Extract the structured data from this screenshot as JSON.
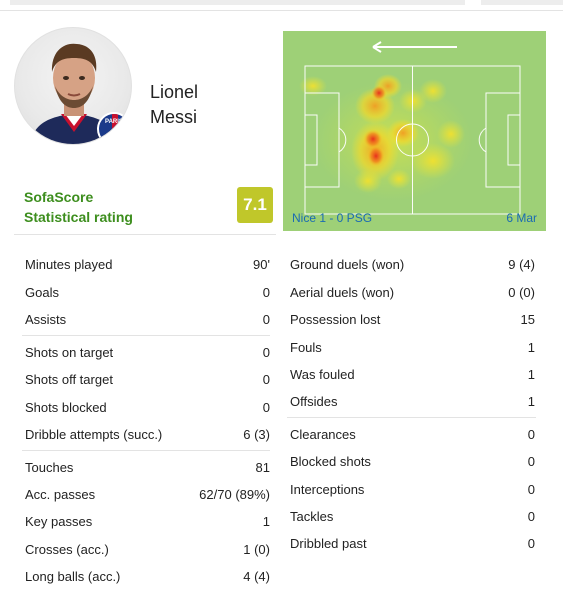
{
  "player": {
    "first_name": "Lionel",
    "last_name": "Messi",
    "club_badge_text": "PARIS"
  },
  "rating": {
    "label_line1": "SofaScore",
    "label_line2": "Statistical rating",
    "value": "7.1",
    "badge_color": "#c0c72a"
  },
  "heatmap": {
    "match": "Nice 1 - 0 PSG",
    "date": "6 Mar",
    "direction_icon": "arrow-left-icon",
    "pitch_color": "#9ed077"
  },
  "left_stats": [
    {
      "label": "Minutes played",
      "value": "90'"
    },
    {
      "label": "Goals",
      "value": "0"
    },
    {
      "label": "Assists",
      "value": "0"
    },
    {
      "label": "Shots on target",
      "value": "0"
    },
    {
      "label": "Shots off target",
      "value": "0"
    },
    {
      "label": "Shots blocked",
      "value": "0"
    },
    {
      "label": "Dribble attempts (succ.)",
      "value": "6 (3)"
    },
    {
      "label": "Touches",
      "value": "81"
    },
    {
      "label": "Acc. passes",
      "value": "62/70 (89%)"
    },
    {
      "label": "Key passes",
      "value": "1"
    },
    {
      "label": "Crosses (acc.)",
      "value": "1 (0)"
    },
    {
      "label": "Long balls (acc.)",
      "value": "4 (4)"
    }
  ],
  "right_stats": [
    {
      "label": "Ground duels (won)",
      "value": "9 (4)"
    },
    {
      "label": "Aerial duels (won)",
      "value": "0 (0)"
    },
    {
      "label": "Possession lost",
      "value": "15"
    },
    {
      "label": "Fouls",
      "value": "1"
    },
    {
      "label": "Was fouled",
      "value": "1"
    },
    {
      "label": "Offsides",
      "value": "1"
    },
    {
      "label": "Clearances",
      "value": "0"
    },
    {
      "label": "Blocked shots",
      "value": "0"
    },
    {
      "label": "Interceptions",
      "value": "0"
    },
    {
      "label": "Tackles",
      "value": "0"
    },
    {
      "label": "Dribbled past",
      "value": "0"
    }
  ]
}
